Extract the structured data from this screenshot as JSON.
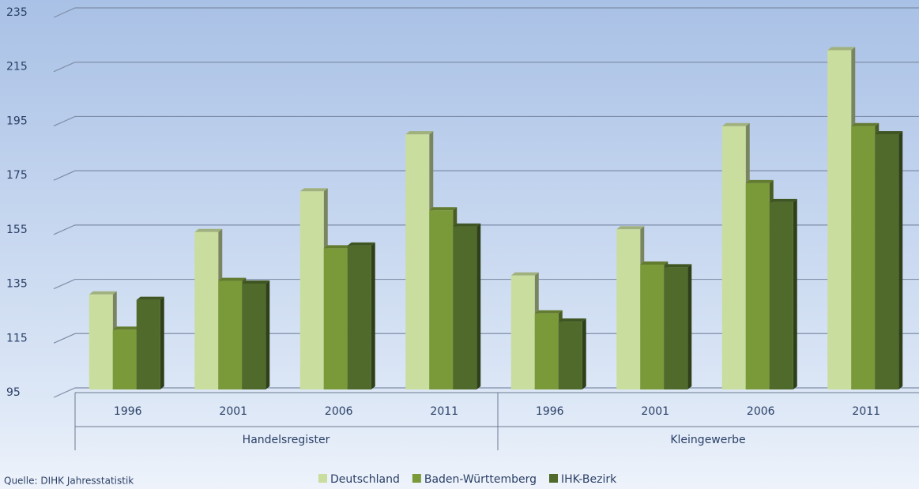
{
  "chart_data": {
    "type": "bar",
    "categories": [
      "1996",
      "2001",
      "2006",
      "2011",
      "1996",
      "2001",
      "2006",
      "2011"
    ],
    "groups": [
      "Handelsregister",
      "Kleingewerbe"
    ],
    "series": [
      {
        "name": "Deutschland",
        "color": "#c9dd9e",
        "values": [
          130,
          153,
          168,
          189,
          137,
          154,
          192,
          220
        ]
      },
      {
        "name": "Baden-Württemberg",
        "color": "#7a9a3a",
        "values": [
          117,
          135,
          147,
          161,
          123,
          141,
          171,
          192
        ]
      },
      {
        "name": "IHK-Bezirk",
        "color": "#4f6a2a",
        "values": [
          128,
          134,
          148,
          155,
          120,
          140,
          164,
          189
        ]
      }
    ],
    "ylim": [
      95,
      235
    ],
    "yticks": [
      95,
      115,
      135,
      155,
      175,
      195,
      215,
      235
    ],
    "grid": true,
    "source": "Quelle: DIHK Jahresstatistik",
    "legend": "bottom"
  }
}
